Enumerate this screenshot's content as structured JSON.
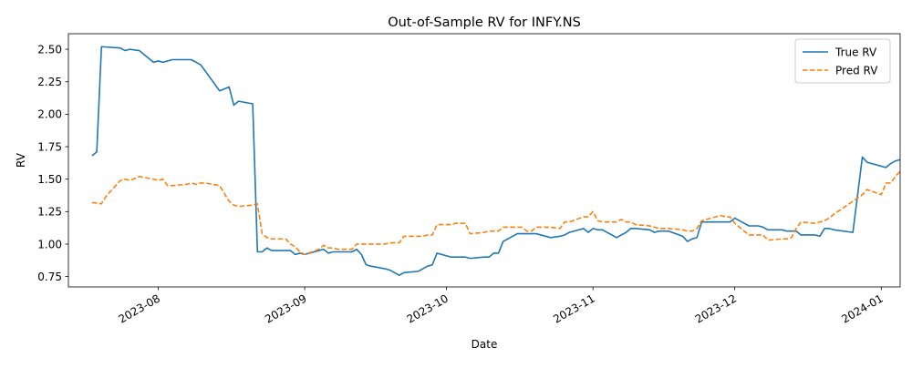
{
  "chart_data": {
    "type": "line",
    "title": "Out-of-Sample RV for INFY.NS",
    "xlabel": "Date",
    "ylabel": "RV",
    "xlim": [
      "2023-07-13",
      "2024-01-05"
    ],
    "ylim": [
      0.67,
      2.62
    ],
    "x_ticks": [
      {
        "date": "2023-08-01",
        "label": "2023-08"
      },
      {
        "date": "2023-09-01",
        "label": "2023-09"
      },
      {
        "date": "2023-10-01",
        "label": "2023-10"
      },
      {
        "date": "2023-11-01",
        "label": "2023-11"
      },
      {
        "date": "2023-12-01",
        "label": "2023-12"
      },
      {
        "date": "2024-01-01",
        "label": "2024-01"
      }
    ],
    "y_ticks": [
      {
        "value": 0.75,
        "label": "0.75"
      },
      {
        "value": 1.0,
        "label": "1.00"
      },
      {
        "value": 1.25,
        "label": "1.25"
      },
      {
        "value": 1.5,
        "label": "1.50"
      },
      {
        "value": 1.75,
        "label": "1.75"
      },
      {
        "value": 2.0,
        "label": "2.00"
      },
      {
        "value": 2.25,
        "label": "2.25"
      },
      {
        "value": 2.5,
        "label": "2.50"
      }
    ],
    "legend_position": "top-right",
    "grid": false,
    "series": [
      {
        "name": "True RV",
        "color": "#1f77b4",
        "linestyle": "solid",
        "points": [
          [
            "2023-07-18",
            1.68
          ],
          [
            "2023-07-19",
            1.71
          ],
          [
            "2023-07-20",
            2.52
          ],
          [
            "2023-07-24",
            2.51
          ],
          [
            "2023-07-25",
            2.49
          ],
          [
            "2023-07-26",
            2.5
          ],
          [
            "2023-07-28",
            2.49
          ],
          [
            "2023-07-31",
            2.4
          ],
          [
            "2023-08-01",
            2.41
          ],
          [
            "2023-08-02",
            2.4
          ],
          [
            "2023-08-03",
            2.41
          ],
          [
            "2023-08-04",
            2.42
          ],
          [
            "2023-08-07",
            2.42
          ],
          [
            "2023-08-08",
            2.42
          ],
          [
            "2023-08-09",
            2.4
          ],
          [
            "2023-08-10",
            2.38
          ],
          [
            "2023-08-11",
            2.33
          ],
          [
            "2023-08-14",
            2.18
          ],
          [
            "2023-08-16",
            2.21
          ],
          [
            "2023-08-17",
            2.07
          ],
          [
            "2023-08-18",
            2.1
          ],
          [
            "2023-08-21",
            2.08
          ],
          [
            "2023-08-22",
            0.94
          ],
          [
            "2023-08-23",
            0.94
          ],
          [
            "2023-08-24",
            0.97
          ],
          [
            "2023-08-25",
            0.95
          ],
          [
            "2023-08-28",
            0.95
          ],
          [
            "2023-08-29",
            0.95
          ],
          [
            "2023-08-30",
            0.92
          ],
          [
            "2023-08-31",
            0.93
          ],
          [
            "2023-09-01",
            0.92
          ],
          [
            "2023-09-04",
            0.95
          ],
          [
            "2023-09-05",
            0.96
          ],
          [
            "2023-09-06",
            0.93
          ],
          [
            "2023-09-07",
            0.94
          ],
          [
            "2023-09-08",
            0.94
          ],
          [
            "2023-09-11",
            0.94
          ],
          [
            "2023-09-12",
            0.96
          ],
          [
            "2023-09-13",
            0.92
          ],
          [
            "2023-09-14",
            0.84
          ],
          [
            "2023-09-15",
            0.83
          ],
          [
            "2023-09-18",
            0.81
          ],
          [
            "2023-09-19",
            0.8
          ],
          [
            "2023-09-20",
            0.78
          ],
          [
            "2023-09-21",
            0.76
          ],
          [
            "2023-09-22",
            0.78
          ],
          [
            "2023-09-25",
            0.79
          ],
          [
            "2023-09-26",
            0.81
          ],
          [
            "2023-09-27",
            0.83
          ],
          [
            "2023-09-28",
            0.84
          ],
          [
            "2023-09-29",
            0.93
          ],
          [
            "2023-10-02",
            0.9
          ],
          [
            "2023-10-03",
            0.9
          ],
          [
            "2023-10-04",
            0.9
          ],
          [
            "2023-10-05",
            0.9
          ],
          [
            "2023-10-06",
            0.89
          ],
          [
            "2023-10-09",
            0.9
          ],
          [
            "2023-10-10",
            0.9
          ],
          [
            "2023-10-11",
            0.93
          ],
          [
            "2023-10-12",
            0.93
          ],
          [
            "2023-10-13",
            1.02
          ],
          [
            "2023-10-16",
            1.08
          ],
          [
            "2023-10-17",
            1.08
          ],
          [
            "2023-10-18",
            1.08
          ],
          [
            "2023-10-19",
            1.08
          ],
          [
            "2023-10-20",
            1.08
          ],
          [
            "2023-10-23",
            1.05
          ],
          [
            "2023-10-25",
            1.06
          ],
          [
            "2023-10-26",
            1.07
          ],
          [
            "2023-10-27",
            1.09
          ],
          [
            "2023-10-30",
            1.12
          ],
          [
            "2023-10-31",
            1.09
          ],
          [
            "2023-11-01",
            1.12
          ],
          [
            "2023-11-02",
            1.11
          ],
          [
            "2023-11-03",
            1.11
          ],
          [
            "2023-11-06",
            1.05
          ],
          [
            "2023-11-07",
            1.07
          ],
          [
            "2023-11-08",
            1.09
          ],
          [
            "2023-11-09",
            1.12
          ],
          [
            "2023-11-10",
            1.12
          ],
          [
            "2023-11-13",
            1.11
          ],
          [
            "2023-11-14",
            1.09
          ],
          [
            "2023-11-15",
            1.1
          ],
          [
            "2023-11-16",
            1.1
          ],
          [
            "2023-11-17",
            1.1
          ],
          [
            "2023-11-20",
            1.06
          ],
          [
            "2023-11-21",
            1.02
          ],
          [
            "2023-11-22",
            1.04
          ],
          [
            "2023-11-23",
            1.05
          ],
          [
            "2023-11-24",
            1.17
          ],
          [
            "2023-11-27",
            1.17
          ],
          [
            "2023-11-28",
            1.17
          ],
          [
            "2023-11-29",
            1.17
          ],
          [
            "2023-11-30",
            1.17
          ],
          [
            "2023-12-01",
            1.2
          ],
          [
            "2023-12-04",
            1.14
          ],
          [
            "2023-12-05",
            1.14
          ],
          [
            "2023-12-06",
            1.14
          ],
          [
            "2023-12-07",
            1.13
          ],
          [
            "2023-12-08",
            1.11
          ],
          [
            "2023-12-11",
            1.11
          ],
          [
            "2023-12-12",
            1.1
          ],
          [
            "2023-12-13",
            1.1
          ],
          [
            "2023-12-14",
            1.1
          ],
          [
            "2023-12-15",
            1.07
          ],
          [
            "2023-12-18",
            1.07
          ],
          [
            "2023-12-19",
            1.06
          ],
          [
            "2023-12-20",
            1.12
          ],
          [
            "2023-12-21",
            1.12
          ],
          [
            "2023-12-22",
            1.11
          ],
          [
            "2023-12-26",
            1.09
          ],
          [
            "2023-12-28",
            1.67
          ],
          [
            "2023-12-29",
            1.63
          ],
          [
            "2024-01-01",
            1.6
          ],
          [
            "2024-01-02",
            1.59
          ],
          [
            "2024-01-03",
            1.62
          ],
          [
            "2024-01-04",
            1.64
          ],
          [
            "2024-01-05",
            1.65
          ]
        ]
      },
      {
        "name": "Pred RV",
        "color": "#ff7f0e",
        "linestyle": "dashed",
        "points": [
          [
            "2023-07-18",
            1.32
          ],
          [
            "2023-07-20",
            1.31
          ],
          [
            "2023-07-21",
            1.37
          ],
          [
            "2023-07-24",
            1.49
          ],
          [
            "2023-07-25",
            1.5
          ],
          [
            "2023-07-26",
            1.49
          ],
          [
            "2023-07-28",
            1.52
          ],
          [
            "2023-07-31",
            1.5
          ],
          [
            "2023-08-01",
            1.49
          ],
          [
            "2023-08-02",
            1.5
          ],
          [
            "2023-08-03",
            1.45
          ],
          [
            "2023-08-04",
            1.45
          ],
          [
            "2023-08-07",
            1.46
          ],
          [
            "2023-08-08",
            1.47
          ],
          [
            "2023-08-09",
            1.46
          ],
          [
            "2023-08-10",
            1.47
          ],
          [
            "2023-08-11",
            1.47
          ],
          [
            "2023-08-14",
            1.45
          ],
          [
            "2023-08-16",
            1.33
          ],
          [
            "2023-08-17",
            1.3
          ],
          [
            "2023-08-18",
            1.29
          ],
          [
            "2023-08-21",
            1.3
          ],
          [
            "2023-08-22",
            1.31
          ],
          [
            "2023-08-23",
            1.08
          ],
          [
            "2023-08-24",
            1.05
          ],
          [
            "2023-08-25",
            1.04
          ],
          [
            "2023-08-28",
            1.04
          ],
          [
            "2023-08-29",
            1.0
          ],
          [
            "2023-08-30",
            0.98
          ],
          [
            "2023-08-31",
            0.94
          ],
          [
            "2023-09-01",
            0.92
          ],
          [
            "2023-09-04",
            0.96
          ],
          [
            "2023-09-05",
            0.99
          ],
          [
            "2023-09-06",
            0.97
          ],
          [
            "2023-09-07",
            0.97
          ],
          [
            "2023-09-08",
            0.96
          ],
          [
            "2023-09-11",
            0.96
          ],
          [
            "2023-09-12",
            1.0
          ],
          [
            "2023-09-13",
            1.0
          ],
          [
            "2023-09-14",
            1.0
          ],
          [
            "2023-09-15",
            1.0
          ],
          [
            "2023-09-18",
            1.0
          ],
          [
            "2023-09-19",
            1.01
          ],
          [
            "2023-09-20",
            1.01
          ],
          [
            "2023-09-21",
            1.01
          ],
          [
            "2023-09-22",
            1.06
          ],
          [
            "2023-09-25",
            1.06
          ],
          [
            "2023-09-26",
            1.06
          ],
          [
            "2023-09-27",
            1.07
          ],
          [
            "2023-09-28",
            1.07
          ],
          [
            "2023-09-29",
            1.15
          ],
          [
            "2023-10-02",
            1.15
          ],
          [
            "2023-10-03",
            1.16
          ],
          [
            "2023-10-04",
            1.16
          ],
          [
            "2023-10-05",
            1.16
          ],
          [
            "2023-10-06",
            1.08
          ],
          [
            "2023-10-09",
            1.09
          ],
          [
            "2023-10-10",
            1.1
          ],
          [
            "2023-10-11",
            1.1
          ],
          [
            "2023-10-12",
            1.1
          ],
          [
            "2023-10-13",
            1.13
          ],
          [
            "2023-10-16",
            1.13
          ],
          [
            "2023-10-17",
            1.13
          ],
          [
            "2023-10-18",
            1.1
          ],
          [
            "2023-10-19",
            1.1
          ],
          [
            "2023-10-20",
            1.13
          ],
          [
            "2023-10-23",
            1.13
          ],
          [
            "2023-10-25",
            1.12
          ],
          [
            "2023-10-26",
            1.17
          ],
          [
            "2023-10-27",
            1.17
          ],
          [
            "2023-10-30",
            1.21
          ],
          [
            "2023-10-31",
            1.21
          ],
          [
            "2023-11-01",
            1.25
          ],
          [
            "2023-11-02",
            1.18
          ],
          [
            "2023-11-03",
            1.17
          ],
          [
            "2023-11-06",
            1.17
          ],
          [
            "2023-11-07",
            1.19
          ],
          [
            "2023-11-08",
            1.17
          ],
          [
            "2023-11-09",
            1.17
          ],
          [
            "2023-11-10",
            1.15
          ],
          [
            "2023-11-13",
            1.14
          ],
          [
            "2023-11-14",
            1.13
          ],
          [
            "2023-11-15",
            1.12
          ],
          [
            "2023-11-16",
            1.12
          ],
          [
            "2023-11-17",
            1.12
          ],
          [
            "2023-11-20",
            1.11
          ],
          [
            "2023-11-21",
            1.1
          ],
          [
            "2023-11-22",
            1.1
          ],
          [
            "2023-11-23",
            1.12
          ],
          [
            "2023-11-24",
            1.18
          ],
          [
            "2023-11-27",
            1.21
          ],
          [
            "2023-11-28",
            1.22
          ],
          [
            "2023-11-29",
            1.21
          ],
          [
            "2023-11-30",
            1.21
          ],
          [
            "2023-12-01",
            1.16
          ],
          [
            "2023-12-04",
            1.07
          ],
          [
            "2023-12-05",
            1.07
          ],
          [
            "2023-12-06",
            1.07
          ],
          [
            "2023-12-07",
            1.07
          ],
          [
            "2023-12-08",
            1.03
          ],
          [
            "2023-12-11",
            1.04
          ],
          [
            "2023-12-12",
            1.04
          ],
          [
            "2023-12-13",
            1.05
          ],
          [
            "2023-12-14",
            1.12
          ],
          [
            "2023-12-15",
            1.17
          ],
          [
            "2023-12-18",
            1.16
          ],
          [
            "2023-12-19",
            1.17
          ],
          [
            "2023-12-20",
            1.18
          ],
          [
            "2023-12-21",
            1.2
          ],
          [
            "2023-12-22",
            1.23
          ],
          [
            "2023-12-26",
            1.33
          ],
          [
            "2023-12-28",
            1.38
          ],
          [
            "2023-12-29",
            1.42
          ],
          [
            "2024-01-01",
            1.38
          ],
          [
            "2024-01-02",
            1.47
          ],
          [
            "2024-01-03",
            1.47
          ],
          [
            "2024-01-04",
            1.52
          ],
          [
            "2024-01-05",
            1.56
          ]
        ]
      }
    ]
  }
}
